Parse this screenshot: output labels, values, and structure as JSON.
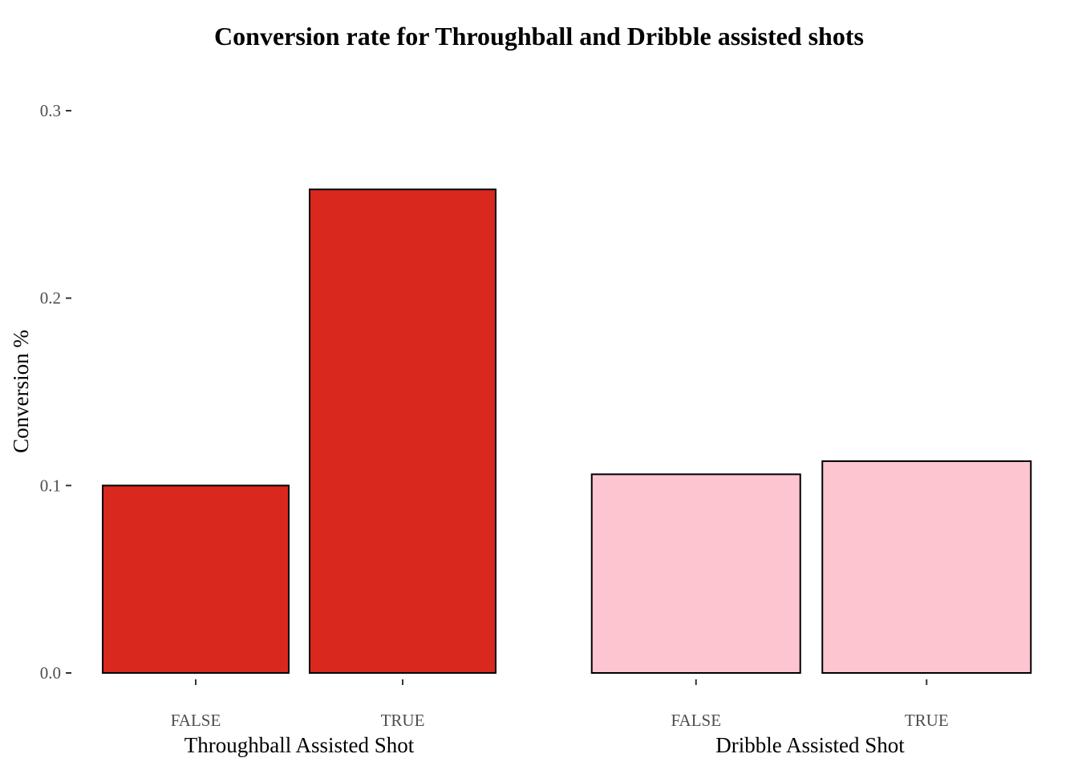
{
  "chart_data": {
    "type": "bar",
    "title": "Conversion rate for Throughball and Dribble assisted shots",
    "ylabel": "Conversion %",
    "ylim": [
      0,
      0.3
    ],
    "yticks": [
      "0.0",
      "0.1",
      "0.2",
      "0.3"
    ],
    "grid": false,
    "legend": "none",
    "panels": [
      {
        "xlabel": "Throughball Assisted Shot",
        "categories": [
          "FALSE",
          "TRUE"
        ],
        "values": [
          0.1,
          0.258
        ],
        "color": "#d9281e"
      },
      {
        "xlabel": "Dribble Assisted Shot",
        "categories": [
          "FALSE",
          "TRUE"
        ],
        "values": [
          0.106,
          0.113
        ],
        "color": "#fcc5d0"
      }
    ]
  }
}
